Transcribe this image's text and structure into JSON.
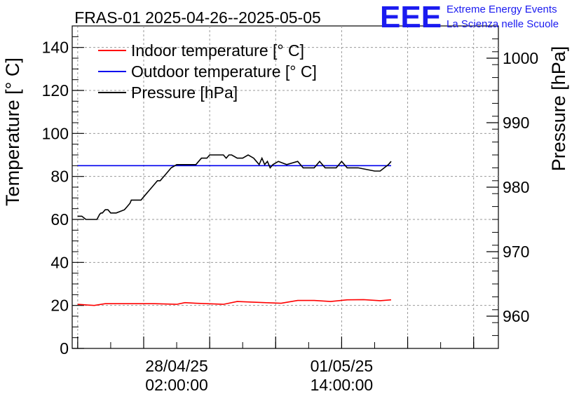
{
  "chart_data": {
    "type": "line",
    "title": "FRAS-01 2025-04-26--2025-05-05",
    "ylabel": "Temperature [° C]",
    "y2label": "Pressure [hPa]",
    "ylim": [
      0,
      150
    ],
    "y2lim": [
      955,
      1005
    ],
    "xlim_hours": [
      0,
      155
    ],
    "y_ticks": [
      0,
      20,
      40,
      60,
      80,
      100,
      120,
      140
    ],
    "y2_ticks": [
      960,
      970,
      980,
      990,
      1000
    ],
    "x_ticks": [
      {
        "hour": 38,
        "label_date": "28/04/25",
        "label_time": "02:00:00"
      },
      {
        "hour": 98,
        "label_date": "01/05/25",
        "label_time": "14:00:00"
      }
    ],
    "grid": true,
    "legend_position": "top-left",
    "series": [
      {
        "name": "Indoor temperature [° C]",
        "axis": "left",
        "color": "#ff0000",
        "x": [
          2,
          8,
          12,
          20,
          30,
          38,
          41,
          45,
          55,
          60,
          70,
          76,
          82,
          88,
          94,
          100,
          106,
          112,
          116
        ],
        "values": [
          20.5,
          20,
          20.8,
          20.8,
          20.8,
          20.5,
          21.3,
          21,
          20.5,
          21.8,
          21.3,
          21,
          22.3,
          22.3,
          21.8,
          22.6,
          22.7,
          22.2,
          22.6
        ]
      },
      {
        "name": "Outdoor temperature [° C]",
        "axis": "left",
        "color": "#0000ee",
        "x": [
          2,
          116
        ],
        "values": [
          85,
          85
        ]
      },
      {
        "name": "Pressure [hPa]",
        "axis": "right",
        "color": "#000000",
        "x": [
          2,
          3.5,
          5,
          6,
          7,
          9,
          10,
          10.5,
          11,
          12,
          13,
          14,
          15,
          16,
          19,
          20,
          21,
          21.5,
          22,
          23,
          24,
          25,
          26,
          27,
          28,
          29,
          30,
          31,
          32,
          33,
          34,
          35,
          36,
          38,
          42,
          45,
          46,
          47,
          48,
          49,
          50,
          52,
          54,
          55,
          56,
          57,
          58,
          60,
          62,
          64,
          66,
          67,
          68,
          69,
          70,
          71,
          72,
          73,
          75,
          78,
          82,
          84,
          88,
          90,
          92,
          96,
          98,
          100,
          104,
          110,
          112,
          115,
          116
        ],
        "values": [
          975.5,
          975.5,
          975,
          975,
          975,
          975,
          975.8,
          976,
          976,
          976.5,
          976.5,
          976,
          976,
          976,
          976.5,
          977,
          977.5,
          978,
          978,
          978,
          978,
          978,
          978.5,
          979,
          979.5,
          980,
          980.5,
          981,
          981,
          981.5,
          982,
          982.5,
          983,
          983.5,
          983.5,
          983.5,
          984,
          984.5,
          984.5,
          984.5,
          985,
          985,
          985,
          985,
          984.5,
          985,
          985,
          984.5,
          984.5,
          985,
          984.5,
          984,
          983.5,
          984.5,
          983.5,
          984,
          983,
          983.5,
          984,
          983.5,
          984,
          983,
          983,
          984,
          983,
          983,
          984,
          983,
          983,
          982.5,
          982.5,
          983.5,
          984
        ]
      }
    ]
  },
  "logo": {
    "mark": "EEE",
    "line1": "Extreme Energy Events",
    "line2": "La Scienza nelle Scuole"
  }
}
